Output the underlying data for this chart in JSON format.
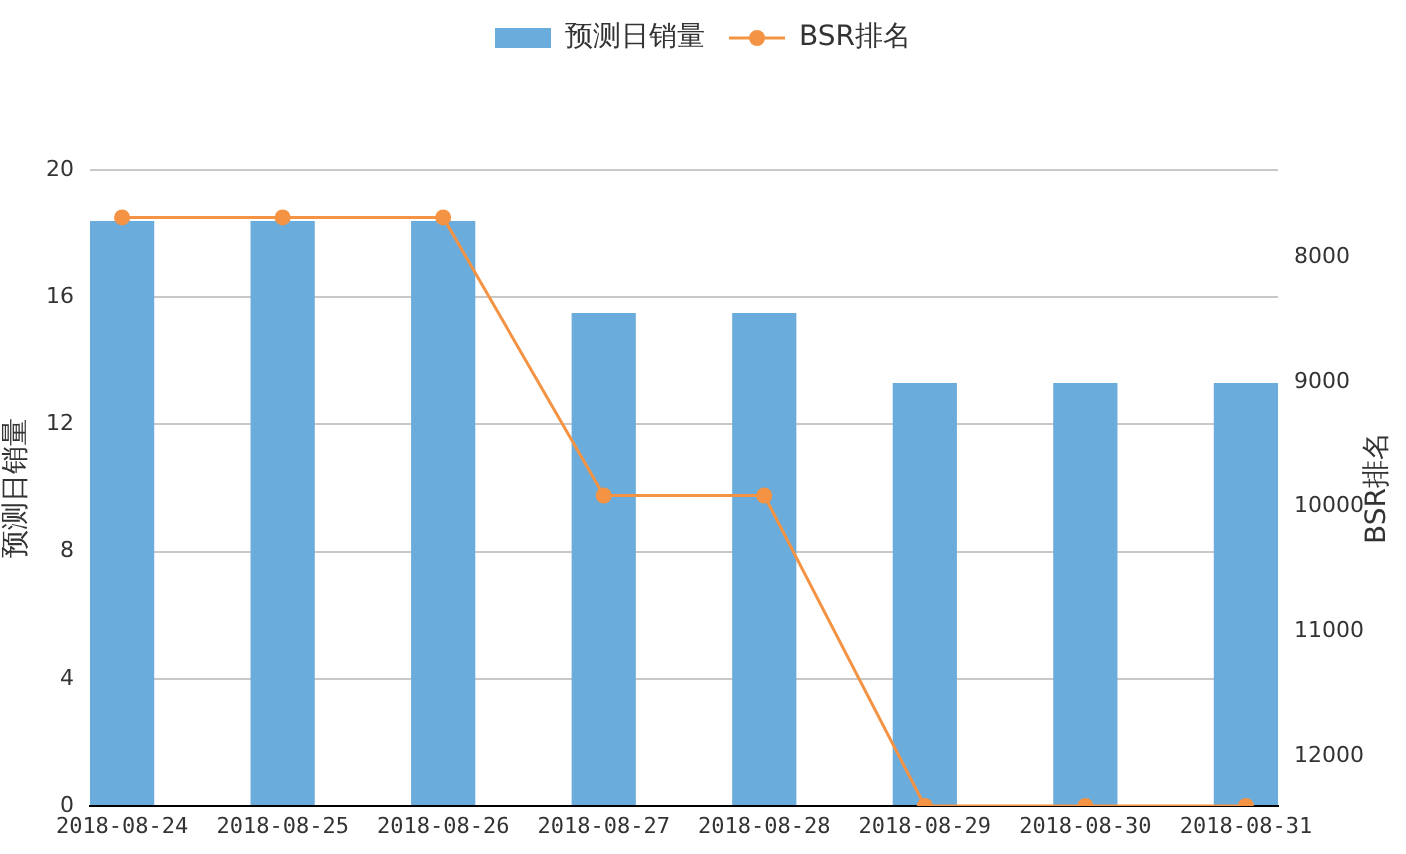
{
  "chart_data": {
    "type": "bar",
    "categories": [
      "2018-08-24",
      "2018-08-25",
      "2018-08-26",
      "2018-08-27",
      "2018-08-28",
      "2018-08-29",
      "2018-08-30",
      "2018-08-31"
    ],
    "series": [
      {
        "name": "预测日销量",
        "color": "#6aacdc",
        "values": [
          18.4,
          18.4,
          18.4,
          15.5,
          15.5,
          13.3,
          13.3,
          13.3
        ]
      },
      {
        "name": "BSR排名",
        "type": "line",
        "axis": "y2",
        "color": "#f39343",
        "values": [
          7680,
          7680,
          7680,
          9910,
          9910,
          12400,
          12400,
          12400
        ]
      }
    ],
    "ylabel": "预测日销量",
    "y2label": "BSR排名",
    "ylim": [
      0,
      20
    ],
    "yticks": [
      0,
      4,
      8,
      12,
      16,
      20
    ],
    "y2lim": [
      12400,
      7300
    ],
    "y2ticks": [
      8000,
      9000,
      10000,
      11000,
      12000
    ],
    "grid": "y",
    "legend": "top",
    "marker": "circle"
  }
}
